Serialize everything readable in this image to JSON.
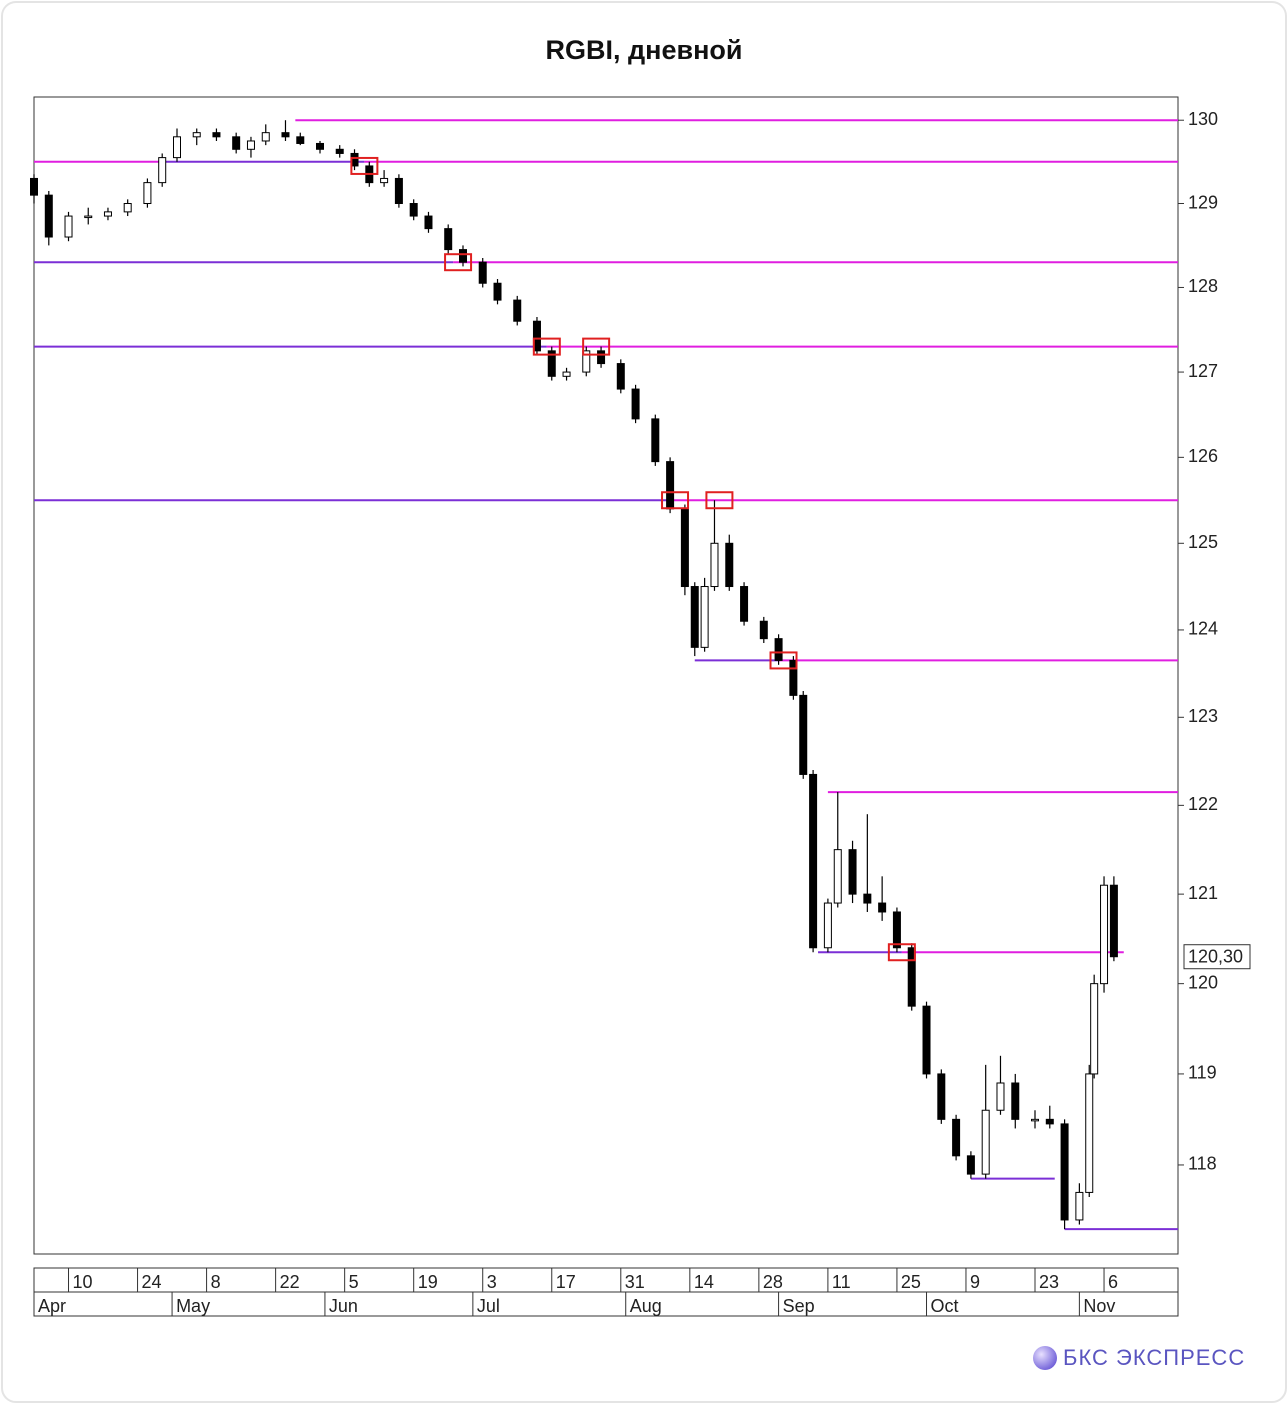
{
  "chart_data": {
    "type": "candlestick",
    "title": "RGBI, дневной",
    "log_scale": true,
    "ylim": [
      117.03,
      130.28
    ],
    "yticks": [
      118,
      119,
      120,
      121,
      122,
      123,
      124,
      125,
      126,
      127,
      128,
      129,
      130
    ],
    "xlim": [
      "04-03",
      "11-21"
    ],
    "xticks": [
      {
        "value": "04-10",
        "label": "10"
      },
      {
        "value": "04-24",
        "label": "24"
      },
      {
        "value": "05-08",
        "label": "8"
      },
      {
        "value": "05-22",
        "label": "22"
      },
      {
        "value": "06-05",
        "label": "5"
      },
      {
        "value": "06-19",
        "label": "19"
      },
      {
        "value": "07-03",
        "label": "3"
      },
      {
        "value": "07-17",
        "label": "17"
      },
      {
        "value": "07-31",
        "label": "31"
      },
      {
        "value": "08-14",
        "label": "14"
      },
      {
        "value": "08-28",
        "label": "28"
      },
      {
        "value": "09-11",
        "label": "11"
      },
      {
        "value": "09-25",
        "label": "25"
      },
      {
        "value": "10-09",
        "label": "9"
      },
      {
        "value": "10-23",
        "label": "23"
      },
      {
        "value": "11-06",
        "label": "6"
      }
    ],
    "month_ticks": [
      {
        "value": "04-01",
        "label": "Apr"
      },
      {
        "value": "05-01",
        "label": "May"
      },
      {
        "value": "06-01",
        "label": "Jun"
      },
      {
        "value": "07-01",
        "label": "Jul"
      },
      {
        "value": "08-01",
        "label": "Aug"
      },
      {
        "value": "09-01",
        "label": "Sep"
      },
      {
        "value": "10-01",
        "label": "Oct"
      },
      {
        "value": "11-01",
        "label": "Nov"
      }
    ],
    "up_color": "#ffffff",
    "down_color": "#000000",
    "x": [
      "04-03",
      "04-06",
      "04-10",
      "04-14",
      "04-18",
      "04-22",
      "04-26",
      "04-29",
      "05-02",
      "05-06",
      "05-10",
      "05-14",
      "05-17",
      "05-20",
      "05-24",
      "05-27",
      "05-31",
      "06-04",
      "06-07",
      "06-10",
      "06-13",
      "06-16",
      "06-19",
      "06-22",
      "06-26",
      "06-29",
      "07-03",
      "07-06",
      "07-10",
      "07-14",
      "07-17",
      "07-20",
      "07-24",
      "07-27",
      "07-31",
      "08-03",
      "08-07",
      "08-10",
      "08-13",
      "08-15",
      "08-17",
      "08-19",
      "08-22",
      "08-25",
      "08-29",
      "09-01",
      "09-04",
      "09-06",
      "09-08",
      "09-11",
      "09-13",
      "09-16",
      "09-19",
      "09-22",
      "09-25",
      "09-28",
      "10-01",
      "10-04",
      "10-07",
      "10-10",
      "10-13",
      "10-16",
      "10-19",
      "10-23",
      "10-26",
      "10-29",
      "11-01",
      "11-03",
      "11-04",
      "11-06",
      "11-08"
    ],
    "open": [
      129.3,
      129.1,
      128.6,
      128.85,
      128.85,
      128.9,
      129.0,
      129.25,
      129.55,
      129.8,
      129.85,
      129.8,
      129.65,
      129.75,
      129.85,
      129.8,
      129.72,
      129.65,
      129.6,
      129.45,
      129.25,
      129.3,
      129.0,
      128.85,
      128.7,
      128.45,
      128.3,
      128.05,
      127.85,
      127.6,
      127.25,
      126.95,
      127.0,
      127.25,
      127.1,
      126.8,
      126.45,
      125.95,
      125.4,
      124.5,
      123.8,
      124.5,
      125.0,
      124.5,
      124.1,
      123.9,
      123.65,
      123.25,
      122.35,
      120.4,
      120.9,
      121.5,
      121.0,
      120.9,
      120.8,
      120.4,
      119.75,
      119.0,
      118.5,
      118.1,
      117.9,
      118.6,
      118.9,
      118.5,
      118.5,
      118.45,
      117.4,
      117.7,
      119.0,
      120.0,
      121.1
    ],
    "high": [
      129.35,
      129.15,
      128.9,
      128.95,
      128.95,
      129.05,
      129.3,
      129.6,
      129.9,
      129.9,
      129.9,
      129.85,
      129.8,
      129.95,
      130.0,
      129.85,
      129.75,
      129.7,
      129.65,
      129.5,
      129.4,
      129.35,
      129.05,
      128.9,
      128.75,
      128.5,
      128.35,
      128.1,
      127.9,
      127.65,
      127.3,
      127.05,
      127.3,
      127.3,
      127.15,
      126.85,
      126.5,
      126.0,
      125.45,
      124.55,
      124.6,
      125.5,
      125.1,
      124.55,
      124.15,
      123.95,
      123.7,
      123.3,
      122.4,
      120.95,
      122.15,
      121.6,
      121.9,
      121.2,
      120.85,
      120.45,
      119.8,
      119.05,
      118.55,
      118.15,
      119.1,
      119.2,
      119.0,
      118.6,
      118.65,
      118.5,
      117.8,
      119.1,
      120.1,
      121.2,
      121.2
    ],
    "low": [
      129.0,
      128.5,
      128.55,
      128.75,
      128.8,
      128.85,
      128.95,
      129.2,
      129.5,
      129.7,
      129.75,
      129.6,
      129.55,
      129.7,
      129.75,
      129.7,
      129.6,
      129.55,
      129.4,
      129.2,
      129.2,
      128.95,
      128.8,
      128.65,
      128.4,
      128.25,
      128.0,
      127.8,
      127.55,
      127.2,
      126.9,
      126.9,
      126.95,
      127.05,
      126.75,
      126.4,
      125.9,
      125.35,
      124.4,
      123.7,
      123.75,
      124.45,
      124.45,
      124.05,
      123.85,
      123.6,
      123.2,
      122.3,
      120.35,
      120.35,
      120.85,
      120.9,
      120.8,
      120.7,
      120.35,
      119.7,
      118.95,
      118.45,
      118.05,
      117.85,
      117.85,
      118.55,
      118.4,
      118.4,
      118.4,
      117.3,
      117.35,
      117.65,
      118.95,
      119.9,
      120.25
    ],
    "close": [
      129.1,
      128.6,
      128.85,
      128.85,
      128.9,
      129.0,
      129.25,
      129.55,
      129.8,
      129.85,
      129.8,
      129.65,
      129.75,
      129.85,
      129.8,
      129.72,
      129.65,
      129.6,
      129.45,
      129.25,
      129.3,
      129.0,
      128.85,
      128.7,
      128.45,
      128.3,
      128.05,
      127.85,
      127.6,
      127.25,
      126.95,
      127.0,
      127.25,
      127.1,
      126.8,
      126.45,
      125.95,
      125.4,
      124.5,
      123.8,
      124.5,
      125.0,
      124.5,
      124.1,
      123.9,
      123.65,
      123.25,
      122.35,
      120.4,
      120.9,
      121.5,
      121.0,
      120.9,
      120.8,
      120.4,
      119.75,
      119.0,
      118.5,
      118.1,
      117.9,
      118.6,
      118.9,
      118.5,
      118.5,
      118.45,
      117.4,
      117.7,
      119.0,
      120.0,
      121.1,
      120.3
    ],
    "levels": [
      {
        "value": 130.0,
        "from": "05-26",
        "to": "11-21",
        "color": "#e01ee0"
      },
      {
        "value": 129.5,
        "from": "04-03",
        "to": "04-29",
        "color": "#e01ee0"
      },
      {
        "value": 129.5,
        "from": "04-29",
        "to": "06-09",
        "color": "#7b2fd6"
      },
      {
        "value": 129.5,
        "from": "06-09",
        "to": "11-21",
        "color": "#e01ee0"
      },
      {
        "value": 128.3,
        "from": "04-03",
        "to": "06-27",
        "color": "#7b2fd6"
      },
      {
        "value": 128.3,
        "from": "06-27",
        "to": "11-21",
        "color": "#e01ee0"
      },
      {
        "value": 127.3,
        "from": "04-03",
        "to": "07-16",
        "color": "#7b2fd6"
      },
      {
        "value": 127.3,
        "from": "07-16",
        "to": "11-21",
        "color": "#e01ee0"
      },
      {
        "value": 125.5,
        "from": "04-03",
        "to": "08-10",
        "color": "#7b2fd6"
      },
      {
        "value": 125.5,
        "from": "08-10",
        "to": "11-21",
        "color": "#e01ee0"
      },
      {
        "value": 123.65,
        "from": "08-15",
        "to": "09-01",
        "color": "#7b2fd6"
      },
      {
        "value": 123.65,
        "from": "09-01",
        "to": "11-21",
        "color": "#e01ee0"
      },
      {
        "value": 122.15,
        "from": "09-11",
        "to": "11-21",
        "color": "#e01ee0"
      },
      {
        "value": 120.35,
        "from": "09-09",
        "to": "09-26",
        "color": "#7b2fd6"
      },
      {
        "value": 120.35,
        "from": "09-26",
        "to": "11-10",
        "color": "#e01ee0"
      },
      {
        "value": 117.85,
        "from": "10-10",
        "to": "10-27",
        "color": "#7b2fd6"
      },
      {
        "value": 117.3,
        "from": "10-29",
        "to": "11-21",
        "color": "#7b2fd6"
      }
    ],
    "highlights": [
      {
        "x": "06-09",
        "value": 129.45
      },
      {
        "x": "06-28",
        "value": 128.3
      },
      {
        "x": "07-16",
        "value": 127.3
      },
      {
        "x": "07-26",
        "value": 127.3
      },
      {
        "x": "08-11",
        "value": 125.5
      },
      {
        "x": "08-20",
        "value": 125.5
      },
      {
        "x": "09-02",
        "value": 123.65
      },
      {
        "x": "09-26",
        "value": 120.35
      }
    ],
    "highlight_color": "#e02020",
    "last_price": {
      "value": 120.3,
      "label": "120,30"
    },
    "brand": "БКС ЭКСПРЕСС"
  }
}
